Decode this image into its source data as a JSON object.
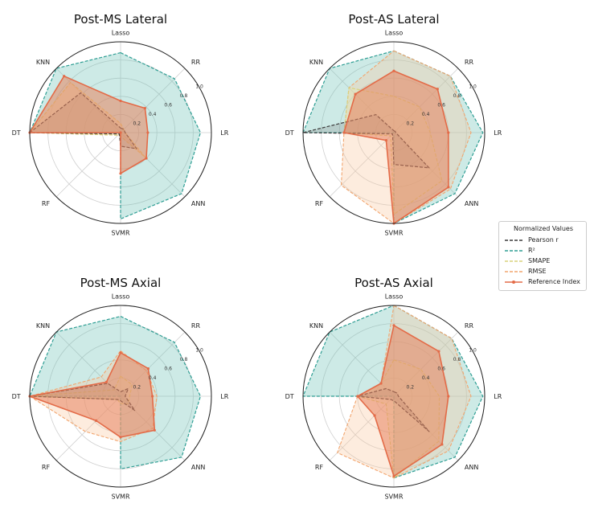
{
  "chart_data": [
    {
      "type": "radar",
      "title": "Post-MS Lateral",
      "axes": [
        "Lasso",
        "RR",
        "LR",
        "ANN",
        "SVMR",
        "RF",
        "DT",
        "KNN"
      ],
      "radial_ticks": [
        "0.2",
        "0.4",
        "0.6",
        "0.8",
        "1.0"
      ],
      "rlim": [
        0,
        1
      ],
      "series": [
        {
          "name": "Pearson r",
          "values": [
            0.05,
            0.05,
            0.05,
            0.25,
            0.15,
            0.02,
            1.0,
            0.62
          ]
        },
        {
          "name": "R²",
          "values": [
            0.88,
            0.84,
            0.88,
            0.95,
            0.95,
            0.0,
            1.0,
            1.0
          ]
        },
        {
          "name": "SMAPE",
          "values": [
            0.1,
            0.05,
            0.05,
            0.38,
            0.04,
            0.04,
            1.0,
            0.78
          ]
        },
        {
          "name": "RMSE",
          "values": [
            0.1,
            0.05,
            0.05,
            0.38,
            0.04,
            0.04,
            1.0,
            0.78
          ]
        },
        {
          "name": "Reference Index",
          "values": [
            0.35,
            0.38,
            0.3,
            0.4,
            0.45,
            0.0,
            1.0,
            0.88
          ]
        }
      ]
    },
    {
      "type": "radar",
      "title": "Post-AS Lateral",
      "axes": [
        "Lasso",
        "RR",
        "LR",
        "ANN",
        "SVMR",
        "RF",
        "DT",
        "KNN"
      ],
      "radial_ticks": [
        "0.2",
        "0.4",
        "0.6",
        "0.8",
        "1.0"
      ],
      "rlim": [
        0,
        1
      ],
      "series": [
        {
          "name": "Pearson r",
          "values": [
            0.02,
            0.02,
            0.02,
            0.55,
            0.35,
            0.02,
            1.0,
            0.28
          ]
        },
        {
          "name": "R²",
          "values": [
            0.9,
            0.88,
            0.98,
            0.95,
            1.0,
            0.0,
            1.0,
            1.0
          ]
        },
        {
          "name": "SMAPE",
          "values": [
            0.4,
            0.4,
            0.4,
            0.75,
            0.9,
            0.05,
            0.55,
            0.7
          ]
        },
        {
          "name": "RMSE",
          "values": [
            0.9,
            0.88,
            0.85,
            0.88,
            1.0,
            0.82,
            0.55,
            0.7
          ]
        },
        {
          "name": "Reference Index",
          "values": [
            0.68,
            0.68,
            0.6,
            0.85,
            1.0,
            0.12,
            0.55,
            0.6
          ]
        }
      ]
    },
    {
      "type": "radar",
      "title": "Post-MS Axial",
      "axes": [
        "Lasso",
        "RR",
        "LR",
        "ANN",
        "SVMR",
        "RF",
        "DT",
        "KNN"
      ],
      "radial_ticks": [
        "0.2",
        "0.4",
        "0.6",
        "0.8",
        "1.0"
      ],
      "rlim": [
        0,
        1
      ],
      "series": [
        {
          "name": "Pearson r",
          "values": [
            0.05,
            0.12,
            0.05,
            0.22,
            0.05,
            0.05,
            1.0,
            0.2
          ]
        },
        {
          "name": "R²",
          "values": [
            0.88,
            0.84,
            0.88,
            0.95,
            0.8,
            0.0,
            1.0,
            1.0
          ]
        },
        {
          "name": "SMAPE",
          "values": [
            0.22,
            0.18,
            0.1,
            0.12,
            0.08,
            0.05,
            1.0,
            0.1
          ]
        },
        {
          "name": "RMSE",
          "values": [
            0.5,
            0.4,
            0.4,
            0.5,
            0.5,
            0.55,
            1.0,
            0.3
          ]
        },
        {
          "name": "Reference Index",
          "values": [
            0.48,
            0.43,
            0.35,
            0.53,
            0.45,
            0.38,
            1.0,
            0.22
          ]
        }
      ]
    },
    {
      "type": "radar",
      "title": "Post-AS Axial",
      "axes": [
        "Lasso",
        "RR",
        "LR",
        "ANN",
        "SVMR",
        "RF",
        "DT",
        "KNN"
      ],
      "radial_ticks": [
        "0.2",
        "0.4",
        "0.6",
        "0.8",
        "1.0"
      ],
      "rlim": [
        0,
        1
      ],
      "series": [
        {
          "name": "Pearson r",
          "values": [
            0.05,
            0.05,
            0.05,
            0.55,
            0.05,
            0.05,
            0.4,
            0.12
          ]
        },
        {
          "name": "R²",
          "values": [
            1.0,
            0.9,
            0.98,
            0.95,
            0.9,
            0.0,
            1.0,
            1.0
          ]
        },
        {
          "name": "SMAPE",
          "values": [
            0.4,
            0.42,
            0.5,
            0.7,
            0.9,
            0.12,
            0.4,
            0.2
          ]
        },
        {
          "name": "RMSE",
          "values": [
            1.0,
            0.9,
            0.85,
            0.85,
            0.9,
            0.88,
            0.4,
            0.2
          ]
        },
        {
          "name": "Reference Index",
          "values": [
            0.78,
            0.7,
            0.6,
            0.75,
            0.88,
            0.3,
            0.4,
            0.2
          ]
        }
      ]
    }
  ],
  "legend": {
    "title": "Normalized Values",
    "entries": [
      {
        "label": "Pearson r",
        "color": "#3a3a3a",
        "style": "dashed"
      },
      {
        "label": "R²",
        "color": "#2f9e94",
        "style": "dashed"
      },
      {
        "label": "SMAPE",
        "color": "#d9d27a",
        "style": "dashed"
      },
      {
        "label": "RMSE",
        "color": "#f2a56e",
        "style": "dashed"
      },
      {
        "label": "Reference Index",
        "color": "#e36b48",
        "style": "solid-marker"
      }
    ]
  },
  "series_styles": {
    "Pearson r": {
      "stroke": "#3a3a3a",
      "fill": "#7a7a7a",
      "fill_opacity": 0.25,
      "dash": "4,2",
      "width": 1.2
    },
    "R²": {
      "stroke": "#2f9e94",
      "fill": "#6fc3b8",
      "fill_opacity": 0.35,
      "dash": "4,2",
      "width": 1.2
    },
    "SMAPE": {
      "stroke": "#d9d27a",
      "fill": "#ece8a8",
      "fill_opacity": 0.3,
      "dash": "4,2",
      "width": 1.1
    },
    "RMSE": {
      "stroke": "#f2a56e",
      "fill": "#f8c8a0",
      "fill_opacity": 0.35,
      "dash": "4,2",
      "width": 1.1
    },
    "Reference Index": {
      "stroke": "#e36b48",
      "fill": "#e8845f",
      "fill_opacity": 0.55,
      "dash": "",
      "width": 1.6
    }
  }
}
